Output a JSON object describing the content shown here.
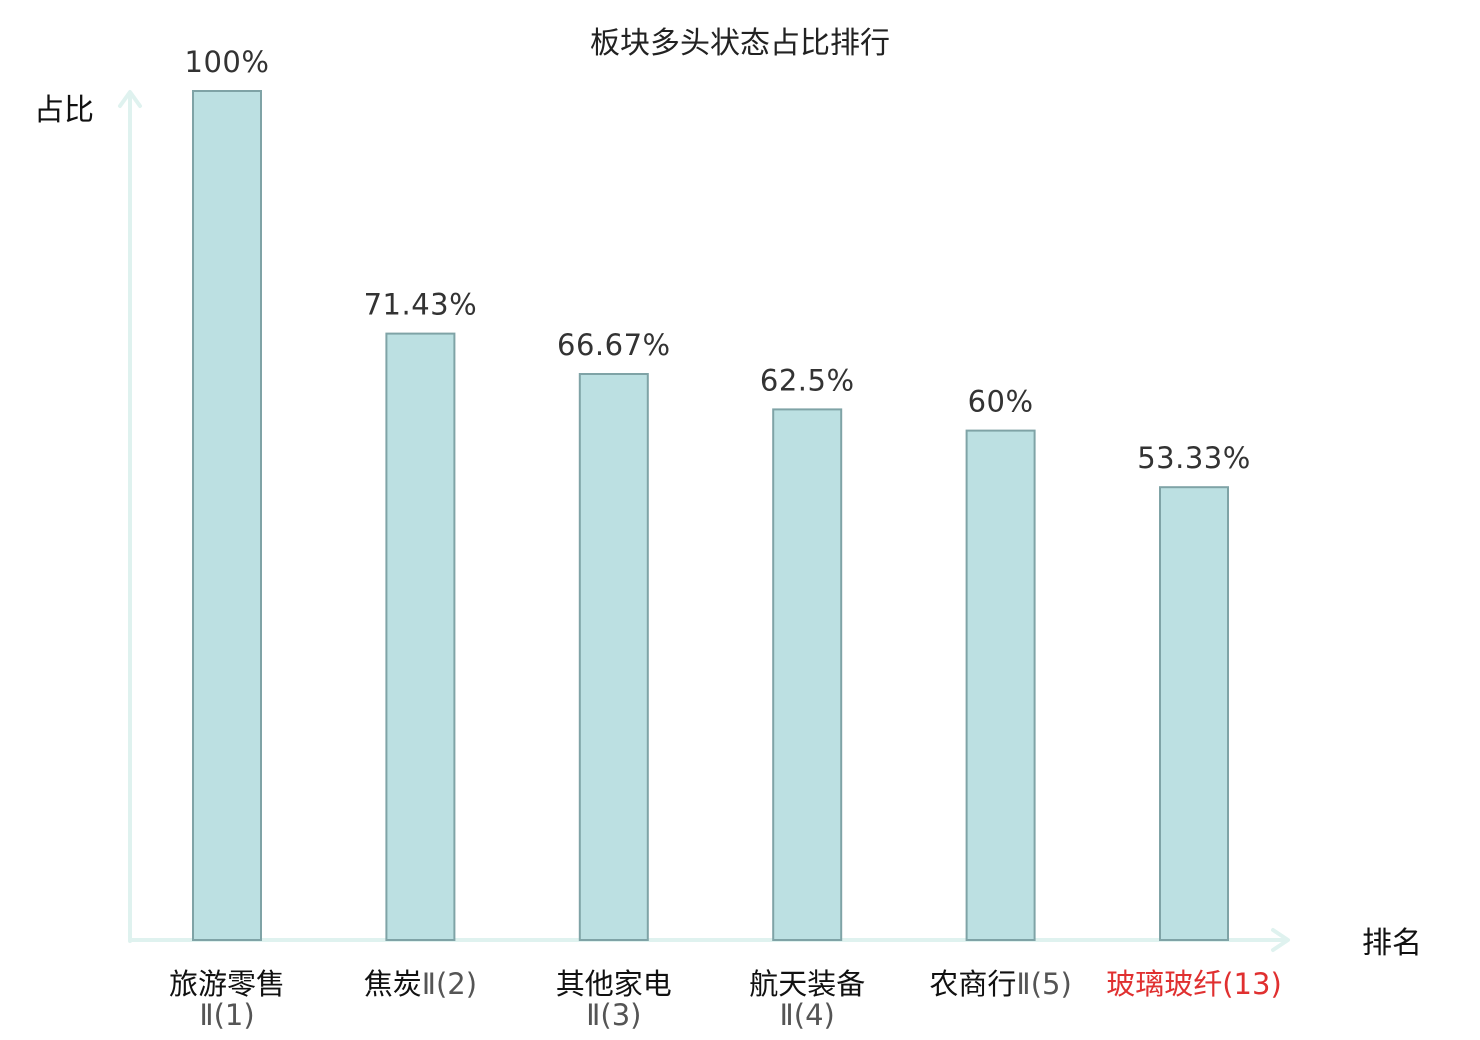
{
  "chart_data": {
    "type": "bar",
    "title": "板块多头状态占比排行",
    "ylabel": "占比",
    "xlabel": "排名",
    "ylim": [
      0,
      100
    ],
    "grid": false,
    "categories": [
      {
        "name": "旅游零售",
        "code": "Ⅱ(1)",
        "wrap": true,
        "highlight": false
      },
      {
        "name": "焦炭",
        "code": "Ⅱ(2)",
        "wrap": false,
        "highlight": false
      },
      {
        "name": "其他家电",
        "code": "Ⅱ(3)",
        "wrap": true,
        "highlight": false
      },
      {
        "name": "航天装备",
        "code": "Ⅱ(4)",
        "wrap": true,
        "highlight": false
      },
      {
        "name": "农商行",
        "code": "Ⅱ(5)",
        "wrap": false,
        "highlight": false
      },
      {
        "name": "玻璃玻纤",
        "code": "(13)",
        "wrap": false,
        "highlight": true
      }
    ],
    "values": [
      100,
      71.43,
      66.67,
      62.5,
      60,
      53.33
    ],
    "value_labels": [
      "100%",
      "71.43%",
      "66.67%",
      "62.5%",
      "60%",
      "53.33%"
    ],
    "colors": {
      "bar_fill": "#bce0e2",
      "bar_stroke": "#7fa3a6",
      "axis": "#dff2ef",
      "highlight": "#e03030",
      "text": "#111111"
    }
  }
}
